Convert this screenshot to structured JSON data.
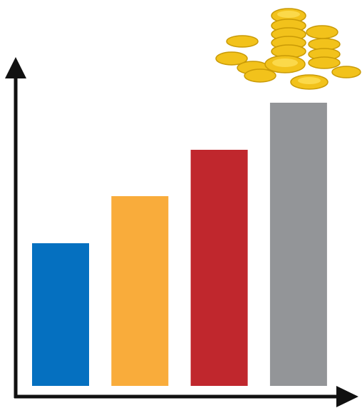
{
  "chart_data": {
    "type": "bar",
    "values": [
      200,
      266,
      331,
      397
    ],
    "colors": [
      "#0570c0",
      "#f9ac3b",
      "#c0272d",
      "#939598"
    ]
  }
}
